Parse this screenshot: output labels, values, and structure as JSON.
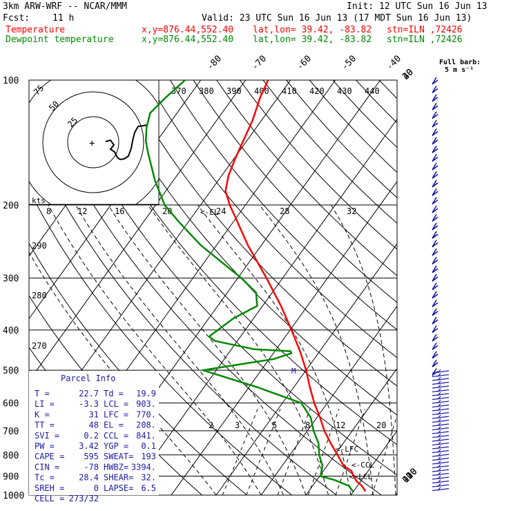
{
  "header": {
    "model": "3km ARW-WRF -- NCAR/MMM",
    "init": "Init: 12 UTC Sun 16 Jun 13",
    "fcst_label": "Fcst:",
    "fcst_value": "11 h",
    "valid": "Valid: 23 UTC Sun 16 Jun 13 (17 MDT Sun 16 Jun 13)",
    "temp_line": {
      "name": "Temperature",
      "xy": "x,y=876.44,552.40",
      "latlon": "lat,lon= 39.42, -83.82",
      "stn": "stn=ILN ,72426"
    },
    "dew_line": {
      "name": "Dewpoint temperature",
      "xy": "x,y=876.44,552.40",
      "latlon": "lat,lon= 39.42, -83.82",
      "stn": "stn=ILN ,72426"
    }
  },
  "colors": {
    "temperature": "#ff0000",
    "dewpoint": "#008800",
    "parcel_panel": "#1a1aa8",
    "wind_barbs": "#1a1aa8",
    "black": "#000000"
  },
  "chart_data": {
    "type": "line",
    "subtype": "skew-T log-P sounding",
    "pressure_levels_hpa": [
      100,
      200,
      300,
      400,
      500,
      600,
      700,
      800,
      900,
      1000
    ],
    "temperature_isotherm_labels": [
      "-80",
      "-70",
      "-60",
      "-50",
      "-40",
      "-30",
      "-20",
      "-10",
      "0",
      "10",
      "20",
      "30",
      "40"
    ],
    "theta_labels": [
      "370",
      "380",
      "390",
      "400",
      "410",
      "420",
      "430",
      "440"
    ],
    "dry_adiabat_labels": [
      "290",
      "280",
      "270"
    ],
    "mixing_ratio_labels": [
      "2",
      "3",
      "5",
      "8",
      "12",
      "20"
    ],
    "hodograph": {
      "rings_kts": [
        "25",
        "50",
        "75"
      ],
      "axis_label": "kts",
      "speed_scale": [
        "8",
        "12",
        "16",
        "20",
        "24",
        "28",
        "32"
      ]
    },
    "level_markers": [
      "EL",
      "LFC",
      "CCL",
      "LCL"
    ],
    "wind_marker": "M",
    "barb_legend": {
      "label": "Full barb:",
      "value": "5 m s⁻¹"
    },
    "series": [
      {
        "name": "Temperature",
        "color": "#ff0000",
        "points": [
          [
            980,
            22.7
          ],
          [
            950,
            21.0
          ],
          [
            925,
            19.0
          ],
          [
            900,
            17.6
          ],
          [
            875,
            16.3
          ],
          [
            850,
            13.7
          ],
          [
            800,
            10.6
          ],
          [
            750,
            7.2
          ],
          [
            700,
            3.8
          ],
          [
            650,
            0.7
          ],
          [
            600,
            -2.9
          ],
          [
            550,
            -6.4
          ],
          [
            500,
            -10.0
          ],
          [
            450,
            -14.4
          ],
          [
            400,
            -19.7
          ],
          [
            350,
            -25.9
          ],
          [
            300,
            -33.6
          ],
          [
            250,
            -43.0
          ],
          [
            220,
            -49.0
          ],
          [
            200,
            -53.5
          ],
          [
            185,
            -56.7
          ],
          [
            170,
            -58.5
          ],
          [
            155,
            -59.7
          ],
          [
            140,
            -60.8
          ],
          [
            125,
            -62.0
          ],
          [
            110,
            -64.0
          ],
          [
            100,
            -65.0
          ]
        ]
      },
      {
        "name": "Dewpoint temperature",
        "color": "#008800",
        "points": [
          [
            980,
            19.9
          ],
          [
            950,
            18.1
          ],
          [
            920,
            14.0
          ],
          [
            900,
            10.2
          ],
          [
            850,
            9.0
          ],
          [
            800,
            6.5
          ],
          [
            750,
            4.5
          ],
          [
            700,
            1.4
          ],
          [
            650,
            -1.4
          ],
          [
            600,
            -5.8
          ],
          [
            550,
            -18.0
          ],
          [
            500,
            -33.0
          ],
          [
            470,
            -19.0
          ],
          [
            455,
            -16.0
          ],
          [
            450,
            -16.5
          ],
          [
            445,
            -25.0
          ],
          [
            425,
            -35.0
          ],
          [
            415,
            -37.0
          ],
          [
            375,
            -34.5
          ],
          [
            350,
            -31.2
          ],
          [
            325,
            -33.6
          ],
          [
            300,
            -39.2
          ],
          [
            250,
            -53.5
          ],
          [
            220,
            -62.0
          ],
          [
            200,
            -68.0
          ],
          [
            175,
            -74.0
          ],
          [
            150,
            -80.0
          ],
          [
            140,
            -82.5
          ],
          [
            130,
            -84.5
          ],
          [
            120,
            -86.0
          ],
          [
            110,
            -85.0
          ],
          [
            100,
            -83.5
          ]
        ]
      }
    ],
    "parcel_info": {
      "title": "Parcel Info",
      "rows": [
        [
          "T  =",
          "22.7",
          "Td =",
          "19.9"
        ],
        [
          "LI =",
          "-3.3",
          "LCL =",
          "903."
        ],
        [
          "K  =",
          "31",
          "LFC =",
          "770."
        ],
        [
          "TT =",
          "48",
          "EL  =",
          "208."
        ],
        [
          "SVI =",
          "0.2",
          "CCL =",
          "841."
        ],
        [
          "PW =",
          "3.42",
          "YGP =",
          "0.1"
        ],
        [
          "CAPE =",
          "595",
          "SWEAT=",
          "193"
        ],
        [
          "CIN =",
          "-78",
          "HWBZ=",
          "3394."
        ],
        [
          "Tc =",
          "28.4",
          "SHEAR=",
          "32."
        ],
        [
          "SREH =",
          "0",
          "LAPSE=",
          "6.5"
        ],
        [
          "CELL =",
          "273/32",
          "",
          ""
        ]
      ]
    }
  }
}
